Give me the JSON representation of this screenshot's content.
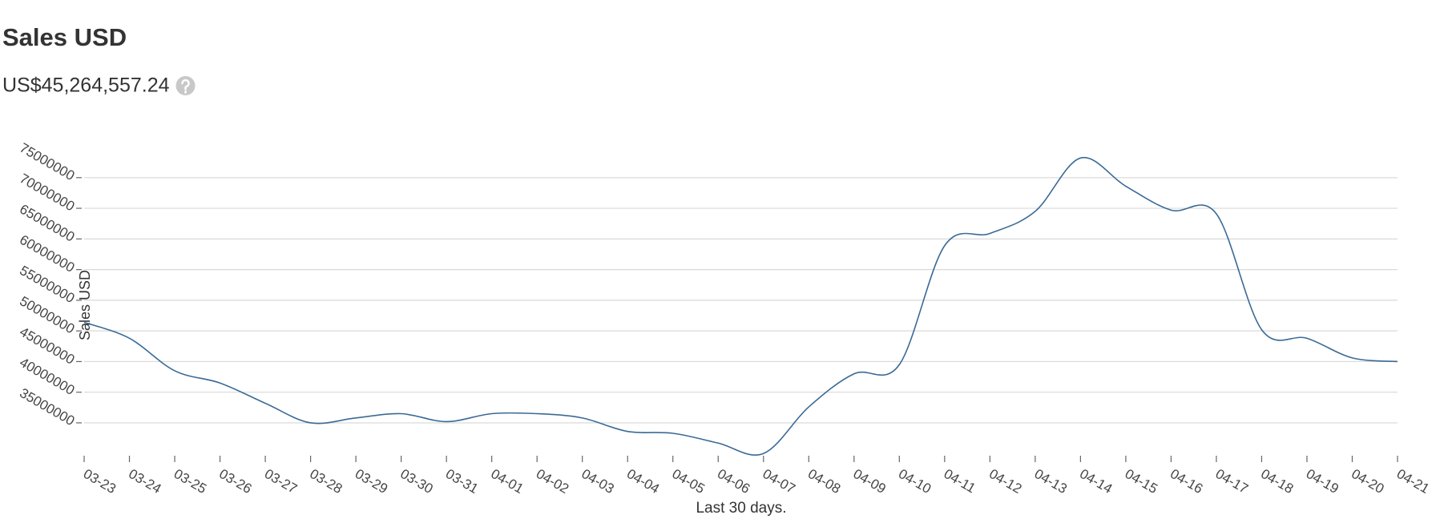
{
  "chart_data": {
    "type": "line",
    "title": "Sales USD",
    "total": "US$45,264,557.24",
    "y_label": "Sales USD",
    "x_label": "Last 30 days.",
    "categories": [
      "03-23",
      "03-24",
      "03-25",
      "03-26",
      "03-27",
      "03-28",
      "03-29",
      "03-30",
      "03-31",
      "04-01",
      "04-02",
      "04-03",
      "04-04",
      "04-05",
      "04-06",
      "04-07",
      "04-08",
      "04-09",
      "04-10",
      "04-11",
      "04-12",
      "04-13",
      "04-14",
      "04-15",
      "04-16",
      "04-17",
      "04-18",
      "04-19",
      "04-20",
      "04-21"
    ],
    "series": [
      {
        "name": "Sales USD",
        "color": "#3a6a96",
        "values": [
          51400000,
          48800000,
          43500000,
          41500000,
          38200000,
          35000000,
          35800000,
          36500000,
          35200000,
          36500000,
          36500000,
          35800000,
          33600000,
          33300000,
          31700000,
          30000000,
          37600000,
          43000000,
          44500000,
          63900000,
          65900000,
          69500000,
          78200000,
          73600000,
          69700000,
          69100000,
          50200000,
          48800000,
          45600000,
          45000000
        ]
      }
    ],
    "ylim": [
      29640000,
      80200000
    ],
    "yticks": [
      35000000,
      40000000,
      45000000,
      50000000,
      55000000,
      60000000,
      65000000,
      70000000,
      75000000
    ],
    "grid": true
  }
}
